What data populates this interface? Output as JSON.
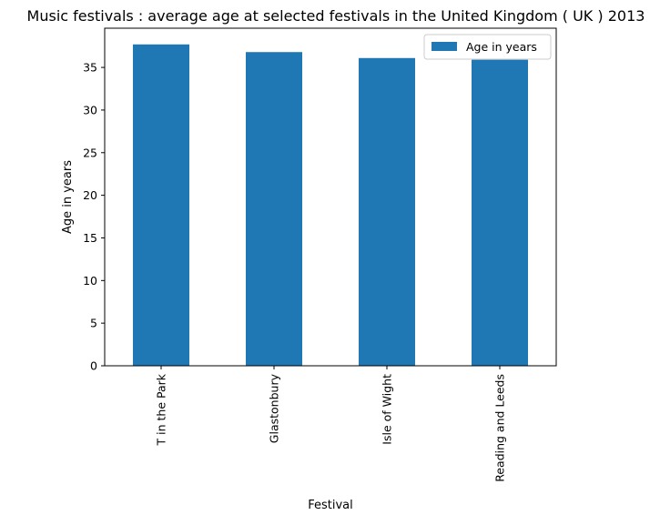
{
  "chart_data": {
    "type": "bar",
    "title": "Music festivals : average age at selected festivals in the United Kingdom ( UK ) 2013",
    "xlabel": "Festival",
    "ylabel": "Age in years",
    "categories": [
      "T in the Park",
      "Glastonbury",
      "Isle of Wight",
      "Reading and Leeds"
    ],
    "series": [
      {
        "name": "Age in years",
        "values": [
          37.7,
          36.8,
          36.1,
          35.9
        ],
        "color": "#1f77b4"
      }
    ],
    "ylim": [
      0,
      39.6
    ],
    "yticks": [
      0,
      5,
      10,
      15,
      20,
      25,
      30,
      35
    ],
    "legend_position": "top-right",
    "grid": false
  }
}
